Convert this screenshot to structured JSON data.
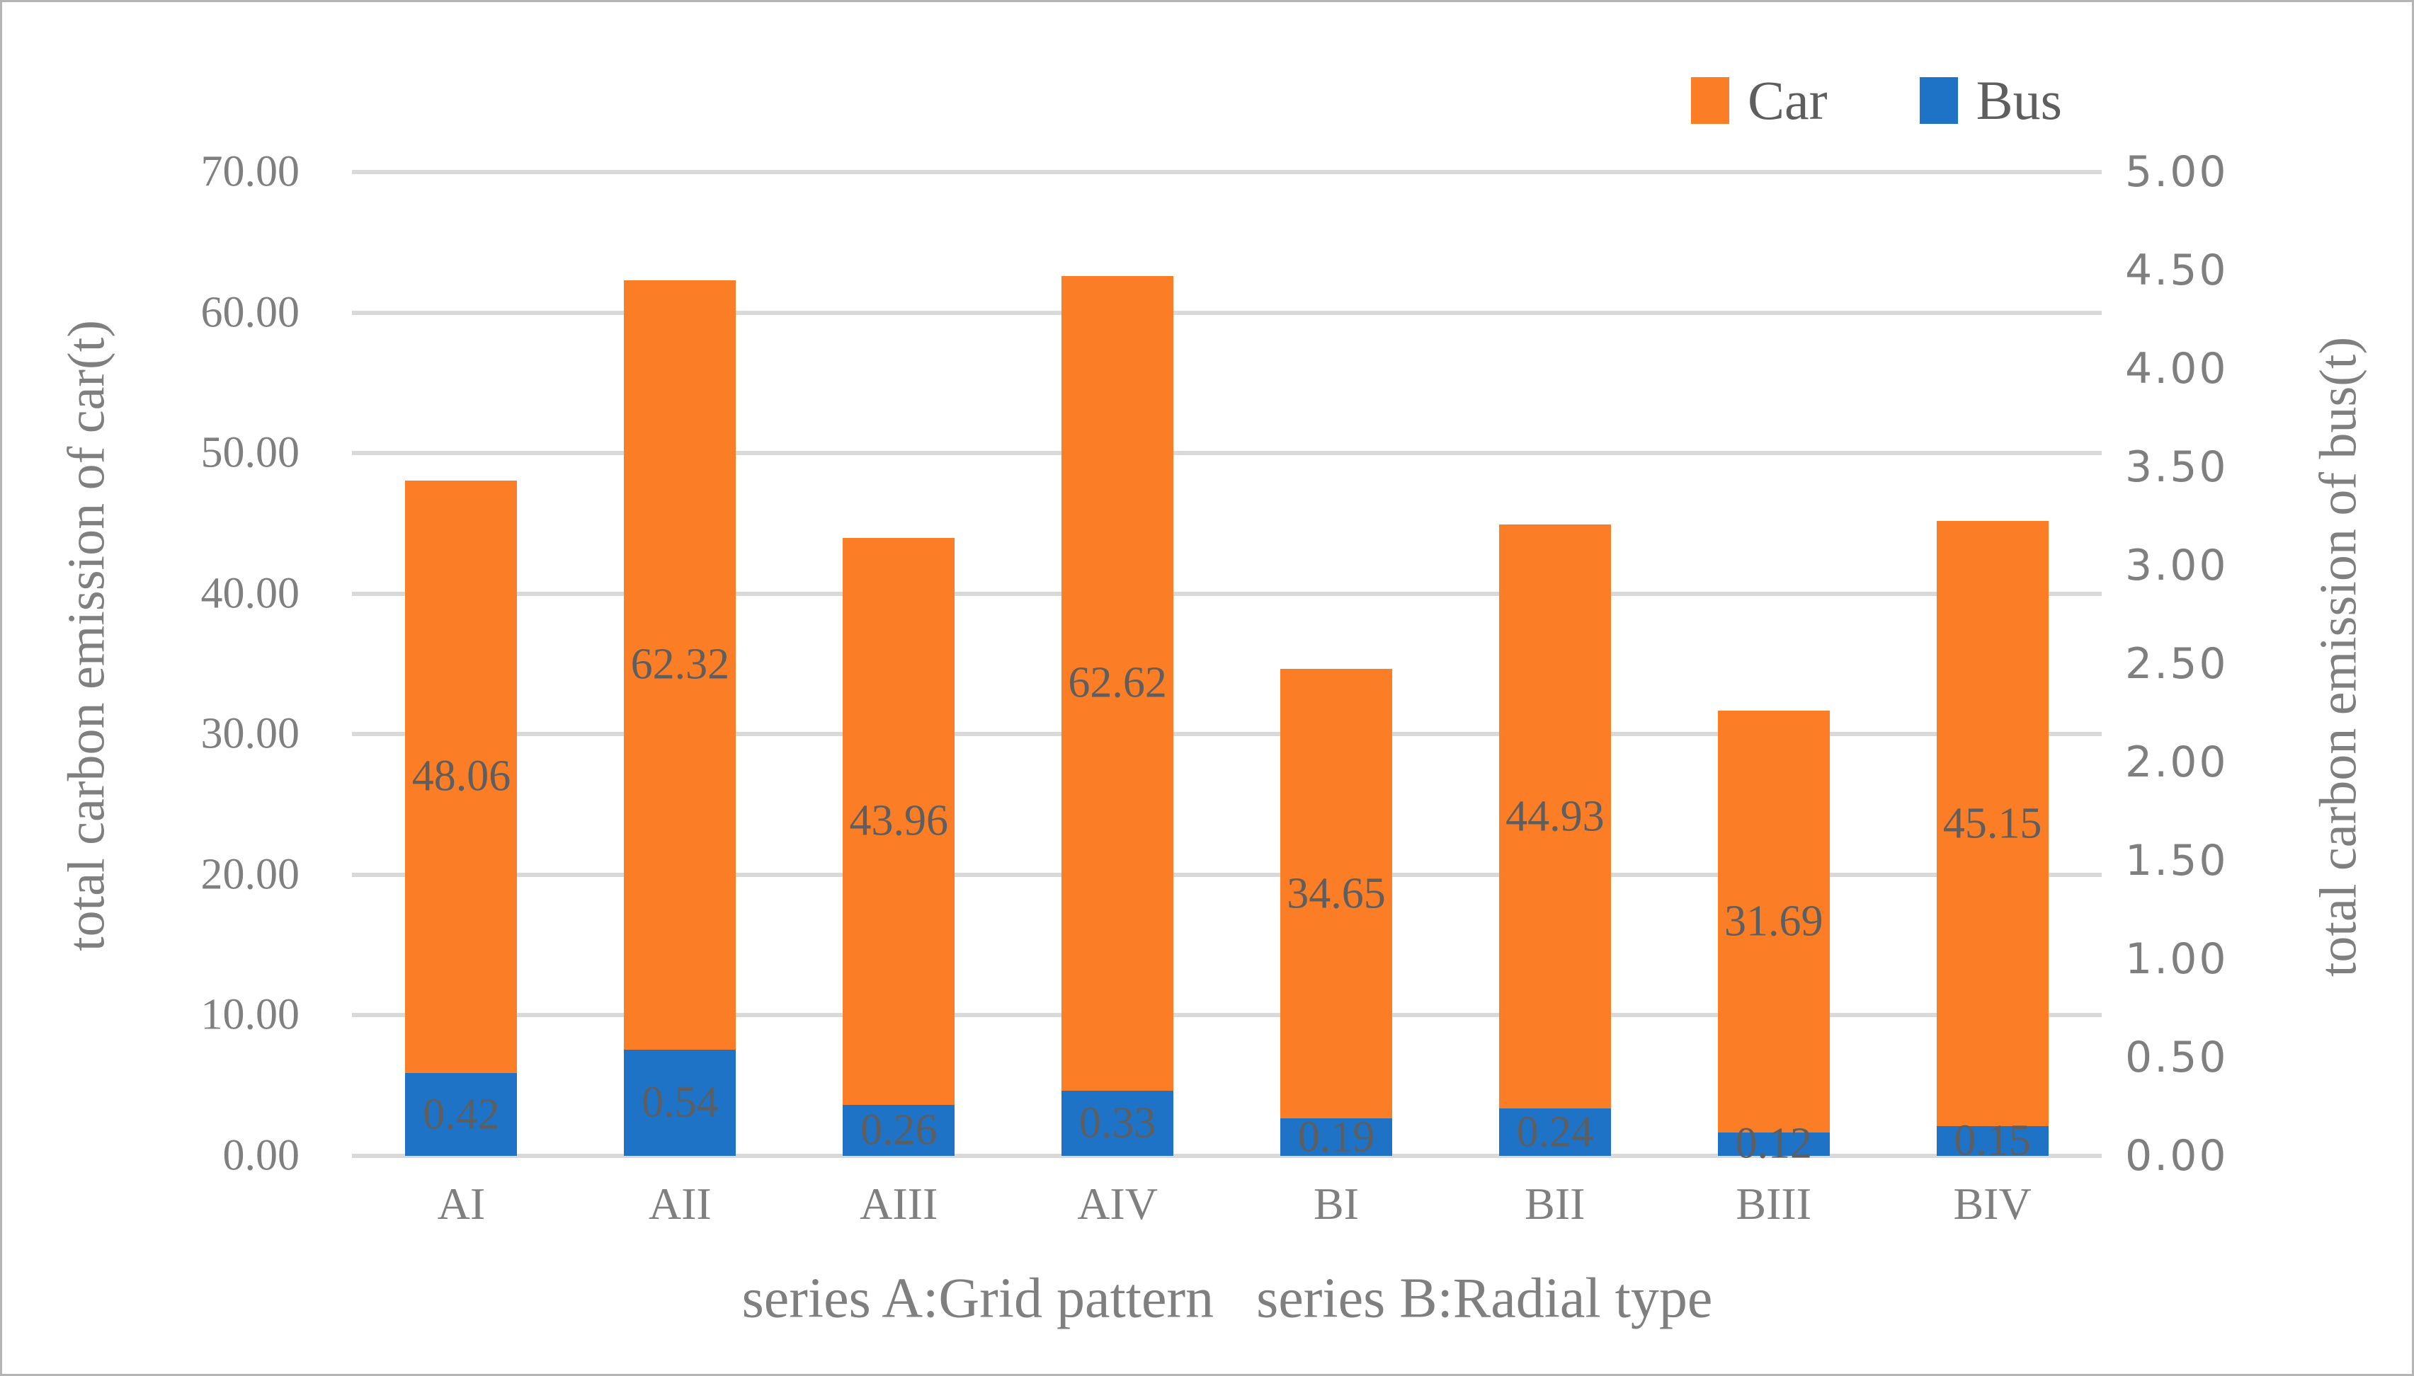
{
  "colors": {
    "car": "#fb7d26",
    "bus": "#1e73c6",
    "gridline": "#d9d9d9",
    "tick_text": "#7f7f7f",
    "label_text": "#5e5e5e",
    "frame_border": "#b5b5b5"
  },
  "chart_data": {
    "type": "bar",
    "subtype": "stacked-dual-axis",
    "grid": true,
    "legend_position": "top-right",
    "categories": [
      "AI",
      "AII",
      "AIII",
      "AIV",
      "BI",
      "BII",
      "BIII",
      "BIV"
    ],
    "series": [
      {
        "name": "Car",
        "axis": "left",
        "values": [
          48.06,
          62.32,
          43.96,
          62.62,
          34.65,
          44.93,
          31.69,
          45.15
        ],
        "labels": [
          "48.06",
          "62.32",
          "43.96",
          "62.62",
          "34.65",
          "44.93",
          "31.69",
          "45.15"
        ]
      },
      {
        "name": "Bus",
        "axis": "right",
        "values": [
          0.42,
          0.54,
          0.26,
          0.33,
          0.19,
          0.24,
          0.12,
          0.15
        ],
        "labels": [
          "0.42",
          "0.54",
          "0.26",
          "0.33",
          "0.19",
          "0.24",
          "0.12",
          "0.15"
        ]
      }
    ],
    "left_axis": {
      "title": "total carbon emission of car(t)",
      "min": 0,
      "max": 70,
      "step": 10,
      "ticks": [
        "70.00",
        "60.00",
        "50.00",
        "40.00",
        "30.00",
        "20.00",
        "10.00",
        "0.00"
      ]
    },
    "right_axis": {
      "title": "total carbon emission of bus(t)",
      "min": 0,
      "max": 5,
      "step": 0.5,
      "ticks": [
        "5.00",
        "4.50",
        "4.00",
        "3.50",
        "3.00",
        "2.50",
        "2.00",
        "1.50",
        "1.00",
        "0.50",
        "0.00"
      ]
    },
    "xlabel": "series A:Grid pattern   series B:Radial type"
  }
}
